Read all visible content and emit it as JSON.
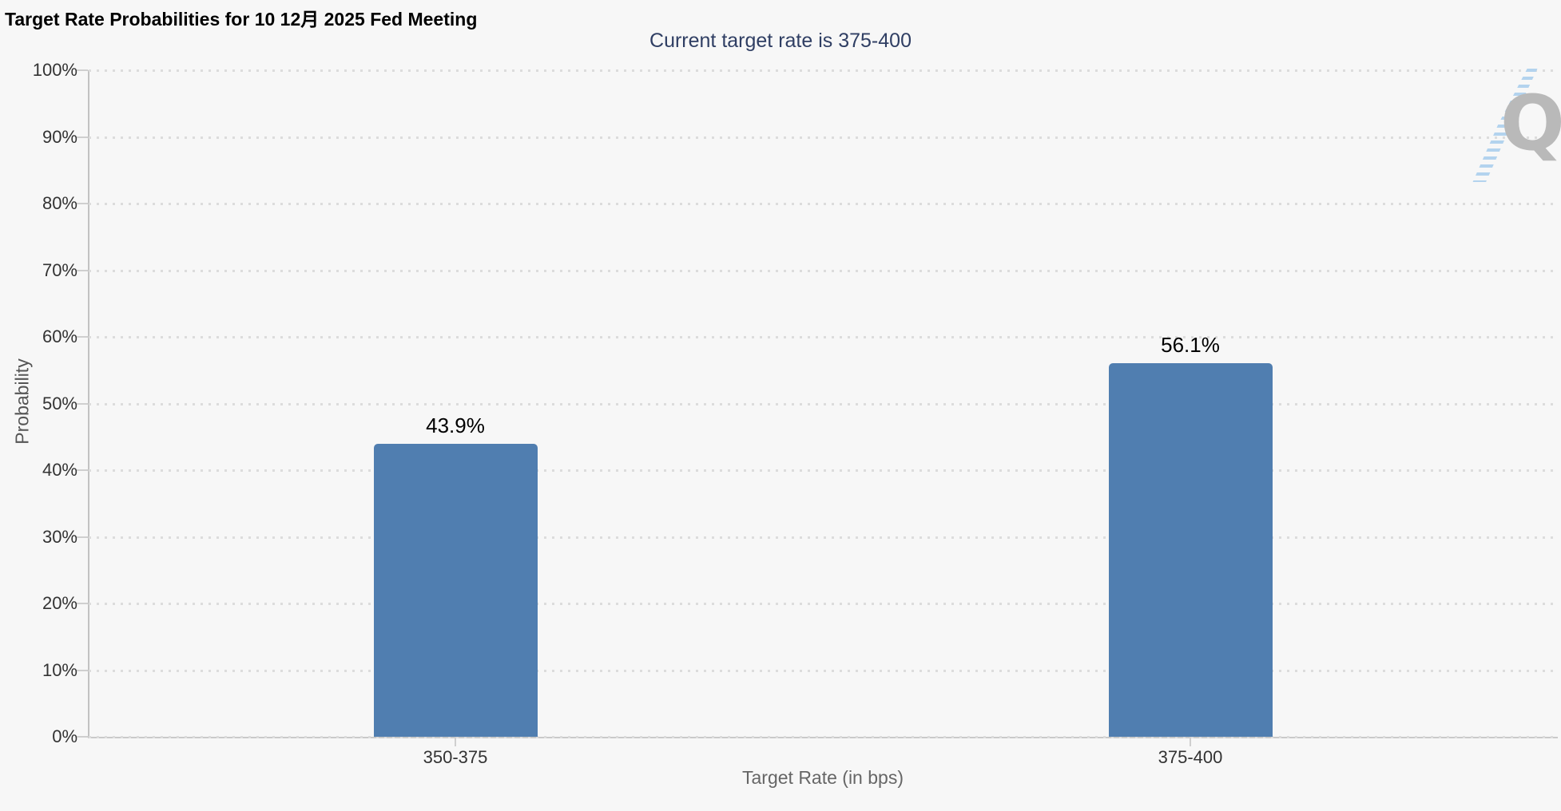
{
  "chart_data": {
    "type": "bar",
    "title": "Target Rate Probabilities for 10 12月 2025 Fed Meeting",
    "subtitle": "Current target rate is 375-400",
    "categories": [
      "350-375",
      "375-400"
    ],
    "values": [
      43.9,
      56.1
    ],
    "value_labels": [
      "43.9%",
      "56.1%"
    ],
    "xlabel": "Target Rate (in bps)",
    "ylabel": "Probability",
    "ylim": [
      0,
      100
    ],
    "ytick_step": 10,
    "ytick_labels": [
      "0%",
      "10%",
      "20%",
      "30%",
      "40%",
      "50%",
      "60%",
      "70%",
      "80%",
      "90%",
      "100%"
    ],
    "legend": "none",
    "grid": "horizontal-dotted",
    "colors": {
      "bar": "#507EB0",
      "background": "#F7F7F7",
      "title_text": "#000000",
      "subtitle_text": "#2F3E63",
      "axis_line": "#C2C2C2",
      "grid_dot": "#DCDCDC",
      "tick_label": "#333333",
      "axis_title": "#666666",
      "value_label": "#000000",
      "watermark_gray": "#B9B9B9",
      "watermark_blue": "#B3D3EE"
    }
  },
  "watermark": {
    "letter": "Q"
  }
}
